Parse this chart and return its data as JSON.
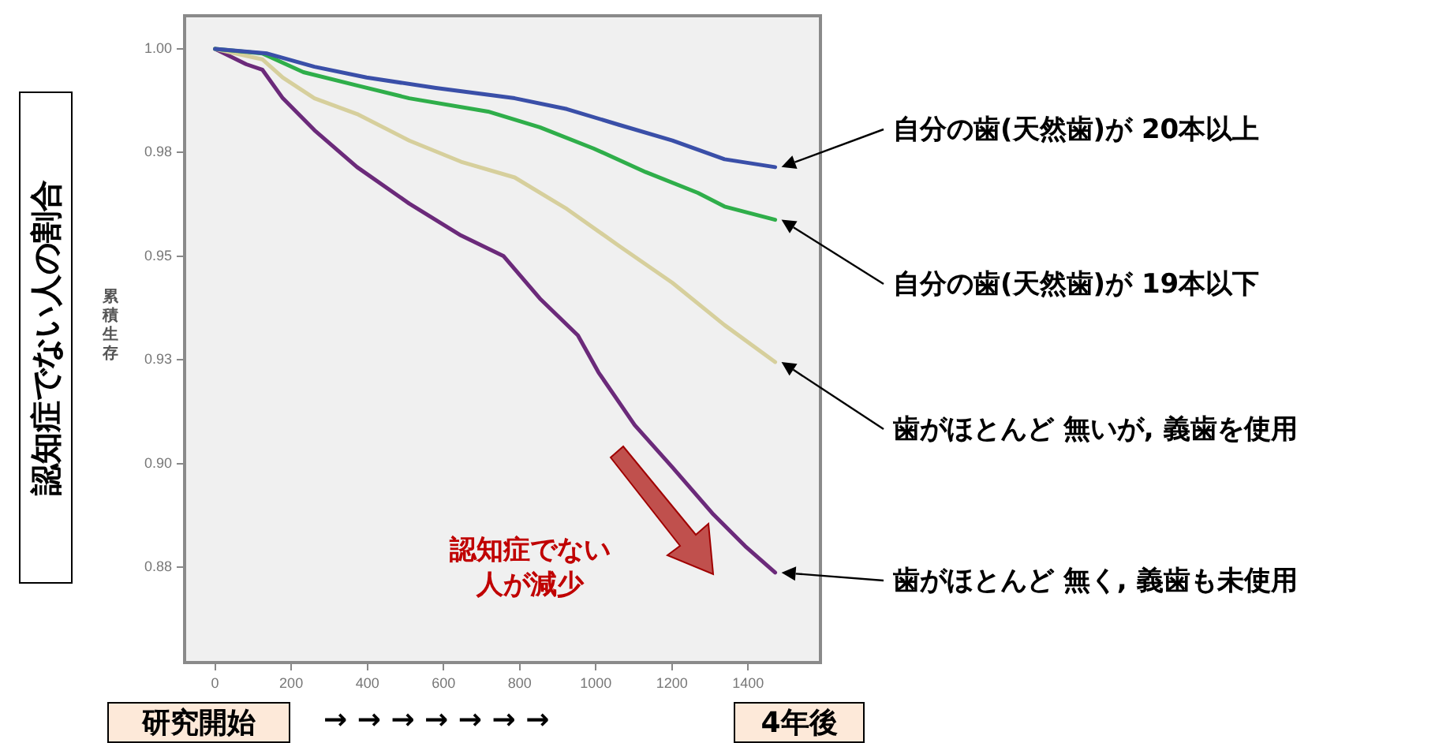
{
  "chart_data": {
    "type": "line",
    "ylabel": "累積生存",
    "xlim": [
      -80,
      1590
    ],
    "xticks": [
      0,
      200,
      400,
      600,
      800,
      1000,
      1200,
      1400
    ],
    "ylim": [
      0.852,
      1.008
    ],
    "yticks": [
      {
        "value": 1.0,
        "label": "1.00"
      },
      {
        "value": 0.975,
        "label": "0.98"
      },
      {
        "value": 0.95,
        "label": "0.95"
      },
      {
        "value": 0.925,
        "label": "0.93"
      },
      {
        "value": 0.9,
        "label": "0.90"
      },
      {
        "value": 0.875,
        "label": "0.88"
      }
    ],
    "grid": false,
    "legend": false,
    "marker": "none",
    "line_style": "solid",
    "series": [
      {
        "name": "自分の歯(天然歯)が 20本以上",
        "color": "#3a4fa8",
        "x": [
          0,
          137,
          261,
          398,
          580,
          787,
          924,
          1061,
          1201,
          1338,
          1471
        ],
        "values": [
          1.0,
          0.9989,
          0.9957,
          0.9931,
          0.9906,
          0.9881,
          0.9855,
          0.9817,
          0.9779,
          0.9734,
          0.9715
        ]
      },
      {
        "name": "自分の歯(天然歯)が 19本以下",
        "color": "#2fae4a",
        "x": [
          0,
          124,
          232,
          373,
          510,
          717,
          853,
          994,
          1131,
          1268,
          1338,
          1471
        ],
        "values": [
          1.0,
          0.9989,
          0.9944,
          0.9912,
          0.9881,
          0.9849,
          0.9811,
          0.976,
          0.9703,
          0.9653,
          0.962,
          0.9588
        ]
      },
      {
        "name": "歯がほとんど 無いが, 義歯を使用",
        "color": "#d6cf9c",
        "x": [
          0,
          124,
          178,
          261,
          373,
          510,
          646,
          787,
          924,
          1061,
          1201,
          1338,
          1471
        ],
        "values": [
          1.0,
          0.9975,
          0.9931,
          0.9881,
          0.9843,
          0.9779,
          0.9728,
          0.969,
          0.9614,
          0.9525,
          0.9436,
          0.9334,
          0.9245
        ]
      },
      {
        "name": "歯がほとんど 無く, 義歯も未使用",
        "color": "#6b2a7a",
        "x": [
          0,
          82,
          124,
          178,
          261,
          373,
          510,
          646,
          758,
          853,
          953,
          1007,
          1102,
          1201,
          1309,
          1392,
          1471
        ],
        "values": [
          1.0,
          0.9963,
          0.995,
          0.9881,
          0.9804,
          0.9715,
          0.9627,
          0.955,
          0.95,
          0.9398,
          0.9309,
          0.922,
          0.9093,
          0.8991,
          0.8877,
          0.8801,
          0.8737
        ]
      }
    ],
    "annotations": [
      "認知症でない人の割合",
      "認知症でない人が減少",
      "研究開始",
      "→ → → → → → →",
      "4年後"
    ]
  }
}
